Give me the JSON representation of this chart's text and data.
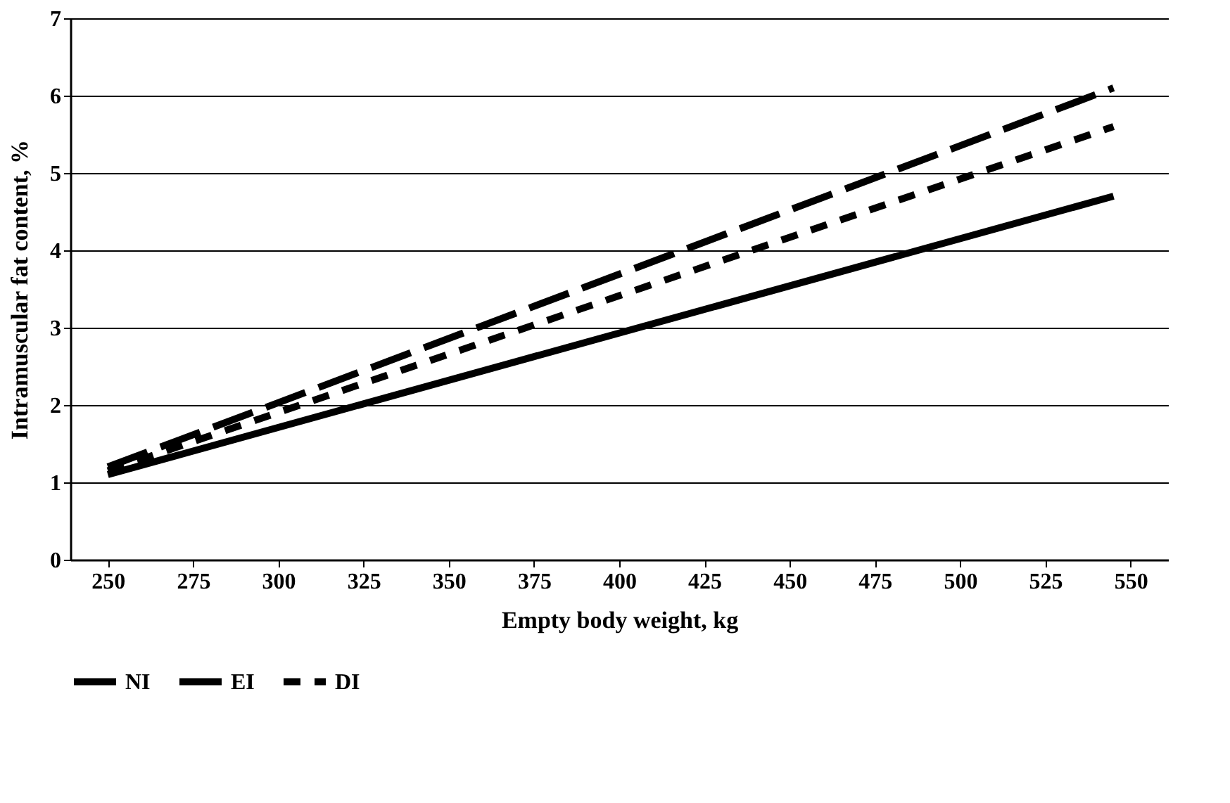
{
  "chart_data": {
    "type": "line",
    "xlabel": "Empty body weight, kg",
    "ylabel": "Intramuscular fat content, %",
    "xlim": [
      239,
      561
    ],
    "xticks": [
      250,
      275,
      300,
      325,
      350,
      375,
      400,
      425,
      450,
      475,
      500,
      525,
      550
    ],
    "ylim": [
      0,
      7
    ],
    "yticks": [
      0,
      1,
      2,
      3,
      4,
      5,
      6,
      7
    ],
    "grid": "y",
    "legend": "bottom",
    "marker": "none",
    "x": [
      250,
      545
    ],
    "series": [
      {
        "name": "NI",
        "color": "#000000",
        "line_style": "dashed",
        "values": [
          1.2,
          6.1
        ]
      },
      {
        "name": "EI",
        "color": "#000000",
        "line_style": "solid",
        "values": [
          1.1,
          4.7
        ]
      },
      {
        "name": "DI",
        "color": "#000000",
        "line_style": "dotted",
        "values": [
          1.15,
          5.6
        ]
      }
    ]
  }
}
